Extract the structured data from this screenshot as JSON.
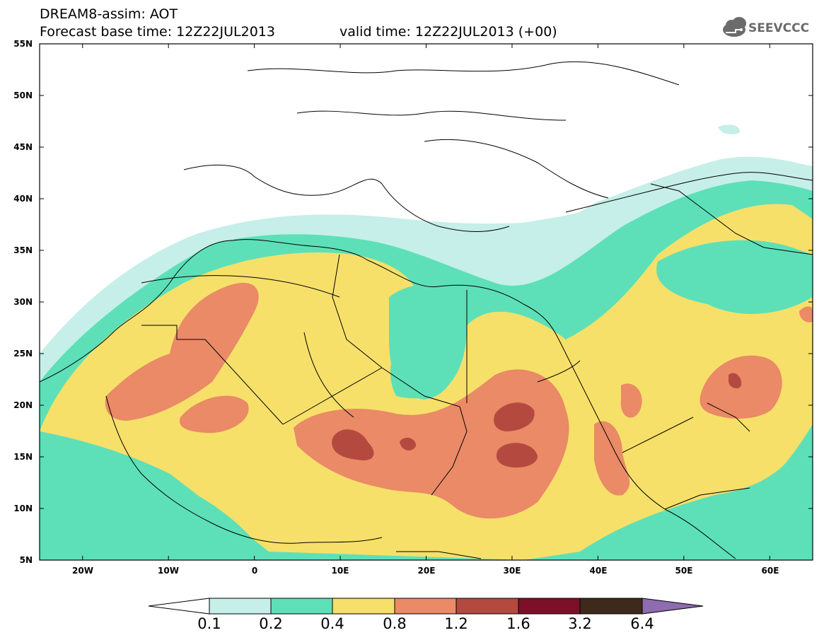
{
  "header": {
    "line1": "DREAM8-assim: AOT",
    "line2": "Forecast base time: 12Z22JUL2013",
    "valid": "valid time: 12Z22JUL2013 (+00)"
  },
  "logo": {
    "text": "SEEVCCC",
    "icon": "cloud-logo-icon",
    "color": "#6b6b6b"
  },
  "map": {
    "lon_range": [
      -25,
      65
    ],
    "lat_range": [
      5,
      55
    ],
    "lat_labels": [
      "55N",
      "50N",
      "45N",
      "40N",
      "35N",
      "30N",
      "25N",
      "20N",
      "15N",
      "10N",
      "5N"
    ],
    "lon_labels": [
      "20W",
      "10W",
      "0",
      "10E",
      "20E",
      "30E",
      "40E",
      "50E",
      "60E"
    ]
  },
  "legend": {
    "levels": [
      "0.1",
      "0.2",
      "0.4",
      "0.8",
      "1.2",
      "1.6",
      "3.2",
      "6.4"
    ],
    "colors": [
      "#ffffff",
      "#c5efe8",
      "#5de0b8",
      "#f6e06a",
      "#ea8a66",
      "#b44a3f",
      "#7e0f28",
      "#3d2a1a",
      "#8f6bb0"
    ]
  }
}
